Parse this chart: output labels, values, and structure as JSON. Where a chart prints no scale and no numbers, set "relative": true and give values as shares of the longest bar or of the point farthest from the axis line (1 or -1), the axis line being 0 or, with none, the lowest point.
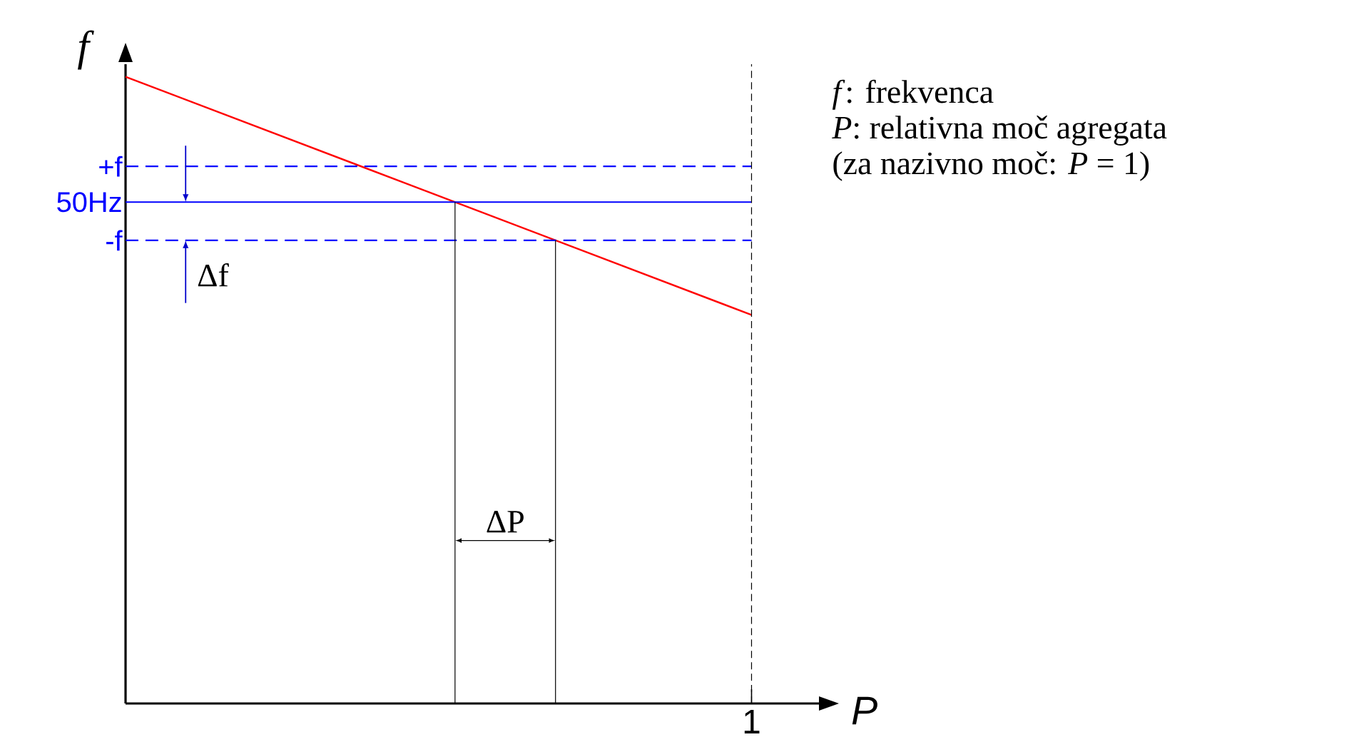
{
  "chart_data": {
    "type": "line",
    "relative": true,
    "xlabel": "P",
    "ylabel": "f",
    "categories": [
      null,
      null
    ],
    "series": [
      {
        "color": "#ff0000",
        "values": [
          1,
          0.62
        ]
      }
    ],
    "ref_lines": [
      {
        "axis": "y",
        "value": 0.857,
        "label": "+f",
        "color": "#0000ff",
        "line_style": "dashed"
      },
      {
        "axis": "y",
        "value": 0.8,
        "label": "50Hz",
        "color": "#0000ff",
        "line_style": "solid"
      },
      {
        "axis": "y",
        "value": 0.739,
        "label": "-f",
        "color": "#0000ff",
        "line_style": "dashed"
      }
    ],
    "annotations": [
      "Δf",
      "ΔP",
      "*f*: frekvenca",
      "*P*: relativna moč agregata",
      "(za nazivno moč: *P* = 1)",
      "1"
    ],
    "grid": false
  }
}
